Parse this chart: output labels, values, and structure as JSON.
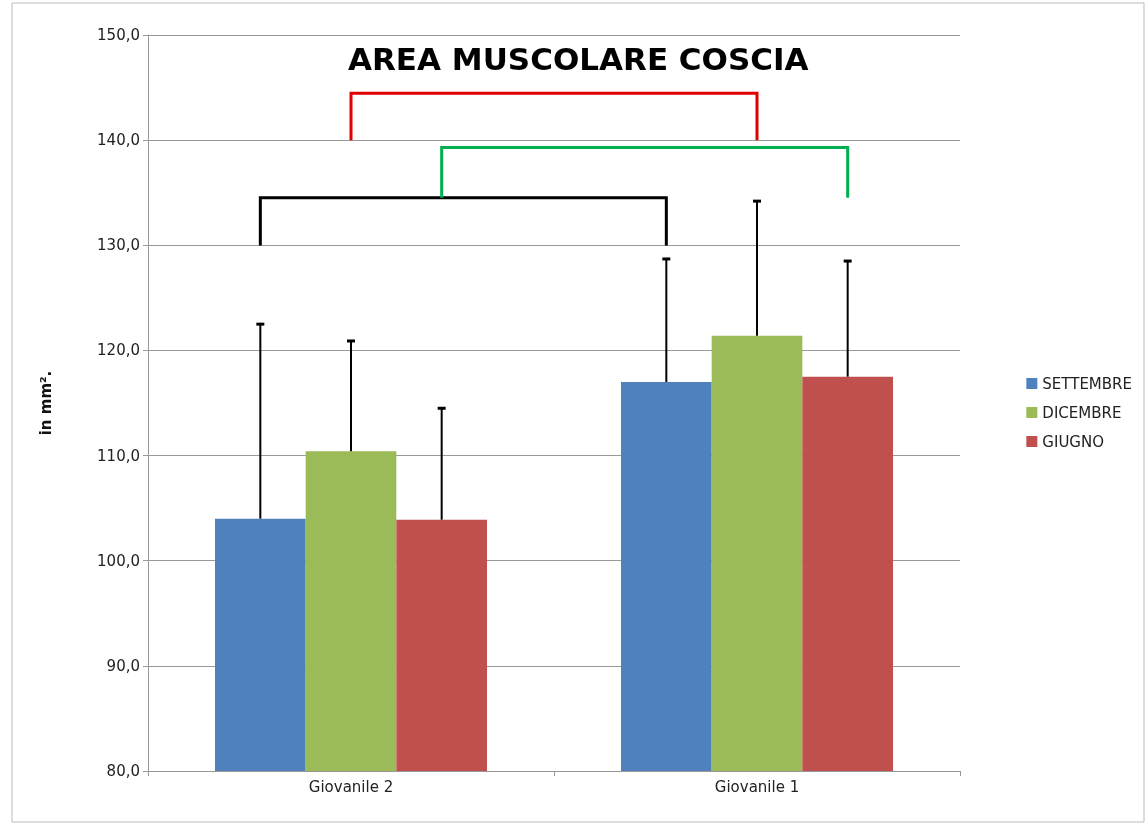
{
  "chart_data": {
    "type": "bar",
    "title": "AREA MUSCOLARE COSCIA",
    "ylabel": "in mm².",
    "categories": [
      "Giovanile 2",
      "Giovanile 1"
    ],
    "series": [
      {
        "name": "SETTEMBRE",
        "color": "#4f81bd",
        "values": [
          104.0,
          117.0
        ],
        "errors": [
          [
            104.0,
            122.5
          ],
          [
            117.0,
            128.7
          ]
        ]
      },
      {
        "name": "DICEMBRE",
        "color": "#9bbb59",
        "values": [
          110.4,
          121.4
        ],
        "errors": [
          [
            110.4,
            120.9
          ],
          [
            121.4,
            134.2
          ]
        ]
      },
      {
        "name": "GIUGNO",
        "color": "#c0504d",
        "values": [
          103.9,
          117.5
        ],
        "errors": [
          [
            103.9,
            114.5
          ],
          [
            117.5,
            128.5
          ]
        ]
      }
    ],
    "ylim": [
      80,
      150
    ],
    "yticks": [
      {
        "value": 80,
        "label": "80,0"
      },
      {
        "value": 90,
        "label": "90,0"
      },
      {
        "value": 100,
        "label": "100,0"
      },
      {
        "value": 110,
        "label": "110,0"
      },
      {
        "value": 120,
        "label": "120,0"
      },
      {
        "value": 130,
        "label": "130,0"
      },
      {
        "value": 140,
        "label": "140,0"
      },
      {
        "value": 150,
        "label": "150,0"
      }
    ],
    "grid": "y",
    "legend": "right"
  }
}
